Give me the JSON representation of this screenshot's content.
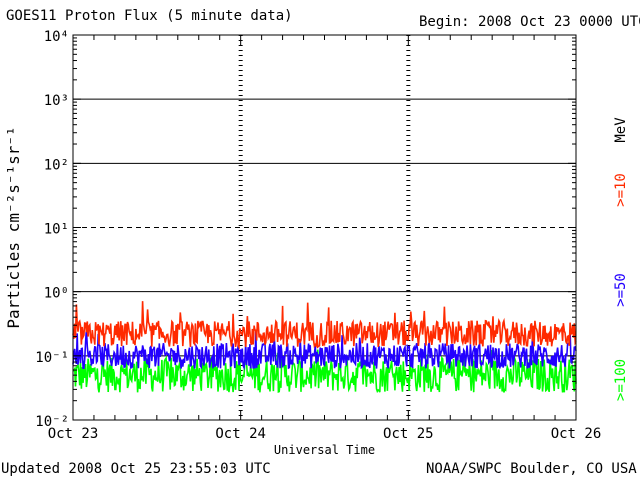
{
  "header": {
    "title": "GOES11 Proton Flux (5 minute data)",
    "begin": "Begin: 2008 Oct 23 0000 UTC"
  },
  "footer": {
    "updated": "Updated 2008 Oct 25 23:55:03 UTC",
    "source": "NOAA/SWPC Boulder, CO USA"
  },
  "colors": {
    "ge10": "#ff2a00",
    "ge50": "#2200ff",
    "ge100": "#00ff00",
    "axis": "#000000",
    "background": "#ffffff"
  },
  "chart_data": {
    "type": "line",
    "title": "GOES11 Proton Flux (5 minute data)",
    "xlabel": "Universal Time",
    "ylabel": "Particles cm⁻²s⁻¹sr⁻¹",
    "yscale": "log",
    "ylim": [
      0.01,
      10000
    ],
    "xlim": [
      "Oct 23",
      "Oct 26"
    ],
    "x_ticks": [
      "Oct 23",
      "Oct 24",
      "Oct 25",
      "Oct 26"
    ],
    "y_ticks": [
      "10⁻²",
      "10⁻¹",
      "10⁰",
      "10¹",
      "10²",
      "10³",
      "10⁴"
    ],
    "y_ticks_values": [
      0.01,
      0.1,
      1,
      10,
      100,
      1000,
      10000
    ],
    "solid_gridlines": [
      0.1,
      1,
      100,
      1000
    ],
    "dashed_gridlines": [
      10
    ],
    "energy_unit": "MeV",
    "series": [
      {
        "name": ">=10",
        "color": "#ff2a00",
        "typical": 0.22,
        "min": 0.13,
        "max": 0.75
      },
      {
        "name": ">=50",
        "color": "#2200ff",
        "typical": 0.1,
        "min": 0.06,
        "max": 0.28
      },
      {
        "name": ">=100",
        "color": "#00ff00",
        "typical": 0.05,
        "min": 0.025,
        "max": 0.13
      }
    ]
  }
}
